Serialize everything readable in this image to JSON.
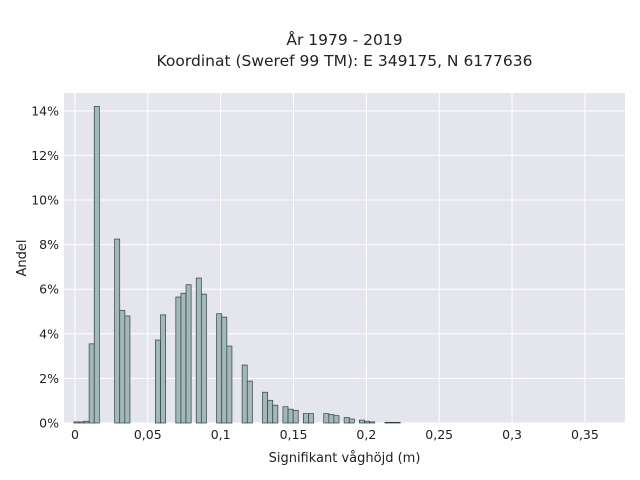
{
  "chart_data": {
    "type": "bar",
    "title_lines": [
      "År 1979 - 2019",
      "Koordinat (Sweref 99 TM): E 349175, N 6177636"
    ],
    "xlabel": "Signifikant våghöjd (m)",
    "ylabel": "Andel",
    "xlim": [
      -0.0075,
      0.3775
    ],
    "ylim": [
      0,
      14.8
    ],
    "x_ticks": [
      0,
      0.05,
      0.1,
      0.15,
      0.2,
      0.25,
      0.3,
      0.35
    ],
    "x_tick_labels": [
      "0",
      "0,05",
      "0,1",
      "0,15",
      "0,2",
      "0,25",
      "0,3",
      "0,35"
    ],
    "y_ticks": [
      0,
      2,
      4,
      6,
      8,
      10,
      12,
      14
    ],
    "y_tick_labels": [
      "0%",
      "2%",
      "4%",
      "6%",
      "8%",
      "10%",
      "12%",
      "14%"
    ],
    "grid": true,
    "bin_width": 0.0035,
    "bins": [
      {
        "x": 0.001,
        "value": 0.05
      },
      {
        "x": 0.0045,
        "value": 0.05
      },
      {
        "x": 0.008,
        "value": 0.08
      },
      {
        "x": 0.0115,
        "value": 3.55
      },
      {
        "x": 0.015,
        "value": 14.2
      },
      {
        "x": 0.029,
        "value": 8.25
      },
      {
        "x": 0.0325,
        "value": 5.05
      },
      {
        "x": 0.036,
        "value": 4.8
      },
      {
        "x": 0.057,
        "value": 3.72
      },
      {
        "x": 0.0605,
        "value": 4.85
      },
      {
        "x": 0.071,
        "value": 5.65
      },
      {
        "x": 0.0745,
        "value": 5.82
      },
      {
        "x": 0.078,
        "value": 6.2
      },
      {
        "x": 0.085,
        "value": 6.5
      },
      {
        "x": 0.0885,
        "value": 5.78
      },
      {
        "x": 0.099,
        "value": 4.9
      },
      {
        "x": 0.1025,
        "value": 4.75
      },
      {
        "x": 0.106,
        "value": 3.45
      },
      {
        "x": 0.1165,
        "value": 2.6
      },
      {
        "x": 0.12,
        "value": 1.88
      },
      {
        "x": 0.1305,
        "value": 1.38
      },
      {
        "x": 0.134,
        "value": 1.02
      },
      {
        "x": 0.1375,
        "value": 0.8
      },
      {
        "x": 0.1445,
        "value": 0.73
      },
      {
        "x": 0.148,
        "value": 0.62
      },
      {
        "x": 0.1515,
        "value": 0.57
      },
      {
        "x": 0.1585,
        "value": 0.42
      },
      {
        "x": 0.162,
        "value": 0.42
      },
      {
        "x": 0.1725,
        "value": 0.42
      },
      {
        "x": 0.176,
        "value": 0.38
      },
      {
        "x": 0.1795,
        "value": 0.33
      },
      {
        "x": 0.1865,
        "value": 0.25
      },
      {
        "x": 0.19,
        "value": 0.18
      },
      {
        "x": 0.197,
        "value": 0.13
      },
      {
        "x": 0.2005,
        "value": 0.08
      },
      {
        "x": 0.204,
        "value": 0.05
      },
      {
        "x": 0.2145,
        "value": 0.03
      },
      {
        "x": 0.218,
        "value": 0.03
      },
      {
        "x": 0.2215,
        "value": 0.03
      }
    ],
    "colors": {
      "plot_background": "#e5e5ee",
      "grid": "#ffffff",
      "bar_fill": "#a3b9b9",
      "bar_edge": "#2f3f3f",
      "text": "#222222"
    }
  }
}
